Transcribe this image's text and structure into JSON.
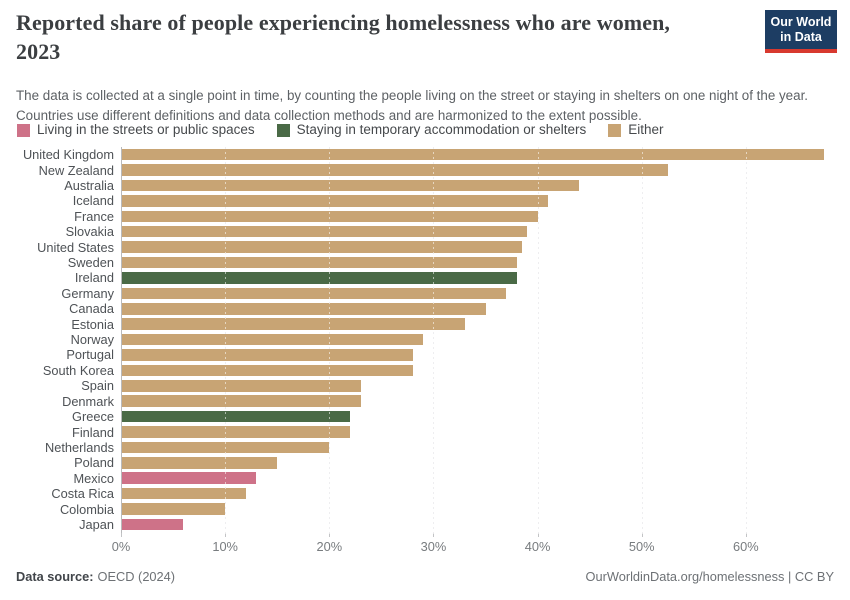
{
  "logo": {
    "line1": "Our World",
    "line2": "in Data",
    "bg_color": "#1d3d63",
    "accent_color": "#d8392f"
  },
  "chart_data": {
    "type": "bar",
    "orientation": "horizontal",
    "title": "Reported share of people experiencing homelessness who are women, 2023",
    "subtitle": "The data is collected at a single point in time, by counting the people living on the street or staying in shelters on one night of the year. Countries use different definitions and data collection methods and are harmonized to the extent possible.",
    "value_unit": "%",
    "xlim": [
      0,
      70
    ],
    "xticks": [
      0,
      10,
      20,
      30,
      40,
      50,
      60
    ],
    "xtick_labels": [
      "0%",
      "10%",
      "20%",
      "30%",
      "40%",
      "50%",
      "60%"
    ],
    "grid": true,
    "legend_position": "top",
    "legend": [
      {
        "key": "streets",
        "label": "Living in the streets or public spaces",
        "color": "#ce7288"
      },
      {
        "key": "shelters",
        "label": "Staying in temporary accommodation or shelters",
        "color": "#4a6a46"
      },
      {
        "key": "either",
        "label": "Either",
        "color": "#c8a474"
      }
    ],
    "bars": [
      {
        "country": "United Kingdom",
        "value": 67.5,
        "category": "either"
      },
      {
        "country": "New Zealand",
        "value": 52.5,
        "category": "either"
      },
      {
        "country": "Australia",
        "value": 44,
        "category": "either"
      },
      {
        "country": "Iceland",
        "value": 41,
        "category": "either"
      },
      {
        "country": "France",
        "value": 40,
        "category": "either"
      },
      {
        "country": "Slovakia",
        "value": 39,
        "category": "either"
      },
      {
        "country": "United States",
        "value": 38.5,
        "category": "either"
      },
      {
        "country": "Sweden",
        "value": 38,
        "category": "either"
      },
      {
        "country": "Ireland",
        "value": 38,
        "category": "shelters"
      },
      {
        "country": "Germany",
        "value": 37,
        "category": "either"
      },
      {
        "country": "Canada",
        "value": 35,
        "category": "either"
      },
      {
        "country": "Estonia",
        "value": 33,
        "category": "either"
      },
      {
        "country": "Norway",
        "value": 29,
        "category": "either"
      },
      {
        "country": "Portugal",
        "value": 28,
        "category": "either"
      },
      {
        "country": "South Korea",
        "value": 28,
        "category": "either"
      },
      {
        "country": "Spain",
        "value": 23,
        "category": "either"
      },
      {
        "country": "Denmark",
        "value": 23,
        "category": "either"
      },
      {
        "country": "Greece",
        "value": 22,
        "category": "shelters"
      },
      {
        "country": "Finland",
        "value": 22,
        "category": "either"
      },
      {
        "country": "Netherlands",
        "value": 20,
        "category": "either"
      },
      {
        "country": "Poland",
        "value": 15,
        "category": "either"
      },
      {
        "country": "Mexico",
        "value": 13,
        "category": "streets"
      },
      {
        "country": "Costa Rica",
        "value": 12,
        "category": "either"
      },
      {
        "country": "Colombia",
        "value": 10,
        "category": "either"
      },
      {
        "country": "Japan",
        "value": 6,
        "category": "streets"
      }
    ]
  },
  "footer": {
    "source_label": "Data source:",
    "source_value": "OECD (2024)",
    "credit": "OurWorldinData.org/homelessness | CC BY"
  }
}
